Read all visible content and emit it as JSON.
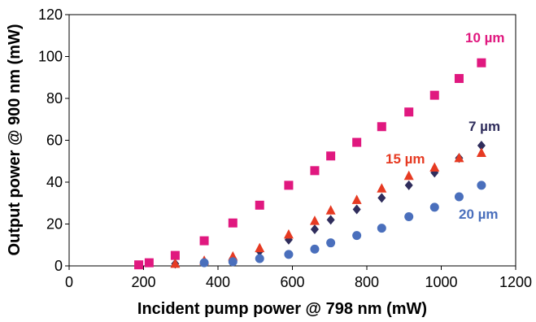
{
  "chart_data": {
    "type": "scatter",
    "title": "",
    "xlabel": "Incident pump power @ 798 nm (mW)",
    "ylabel": "Output power @ 900 nm (mW)",
    "xlim": [
      0,
      1200
    ],
    "ylim": [
      0,
      120
    ],
    "xticks": [
      "0",
      "200",
      "400",
      "600",
      "800",
      "1000",
      "1200"
    ],
    "yticks": [
      "0",
      "20",
      "40",
      "60",
      "80",
      "100",
      "120"
    ],
    "grid": false,
    "legend": "none",
    "series": [
      {
        "name": "10 µm",
        "marker": "square",
        "color": "#e0187f",
        "x": [
          187,
          215,
          285,
          363,
          440,
          512,
          590,
          660,
          703,
          773,
          840,
          913,
          982,
          1048,
          1108
        ],
        "y": [
          0.5,
          1.5,
          5,
          12,
          20.5,
          29,
          38.5,
          45.5,
          52.5,
          59,
          66.5,
          73.5,
          81.5,
          89.5,
          97
        ]
      },
      {
        "name": "7 µm",
        "marker": "diamond",
        "color": "#2f2d5c",
        "x": [
          285,
          363,
          440,
          512,
          590,
          660,
          703,
          773,
          840,
          913,
          982,
          1048,
          1108
        ],
        "y": [
          1,
          2,
          3.5,
          7,
          12.5,
          17.5,
          22,
          27,
          32.5,
          38.5,
          44.5,
          51.5,
          57.5
        ]
      },
      {
        "name": "15 µm",
        "marker": "triangle",
        "color": "#e63a22",
        "x": [
          285,
          363,
          440,
          512,
          590,
          660,
          703,
          773,
          840,
          913,
          982,
          1048,
          1108
        ],
        "y": [
          1,
          2.5,
          4.5,
          8.5,
          15,
          21.5,
          26.5,
          31.5,
          37,
          43,
          47,
          51.5,
          54
        ]
      },
      {
        "name": "20 µm",
        "marker": "circle",
        "color": "#4a6fbc",
        "x": [
          363,
          440,
          512,
          590,
          660,
          703,
          773,
          840,
          913,
          982,
          1048,
          1108
        ],
        "y": [
          1.5,
          2,
          3.5,
          5.5,
          8,
          11,
          14.5,
          18,
          23.5,
          28,
          33,
          38.5
        ]
      }
    ]
  }
}
